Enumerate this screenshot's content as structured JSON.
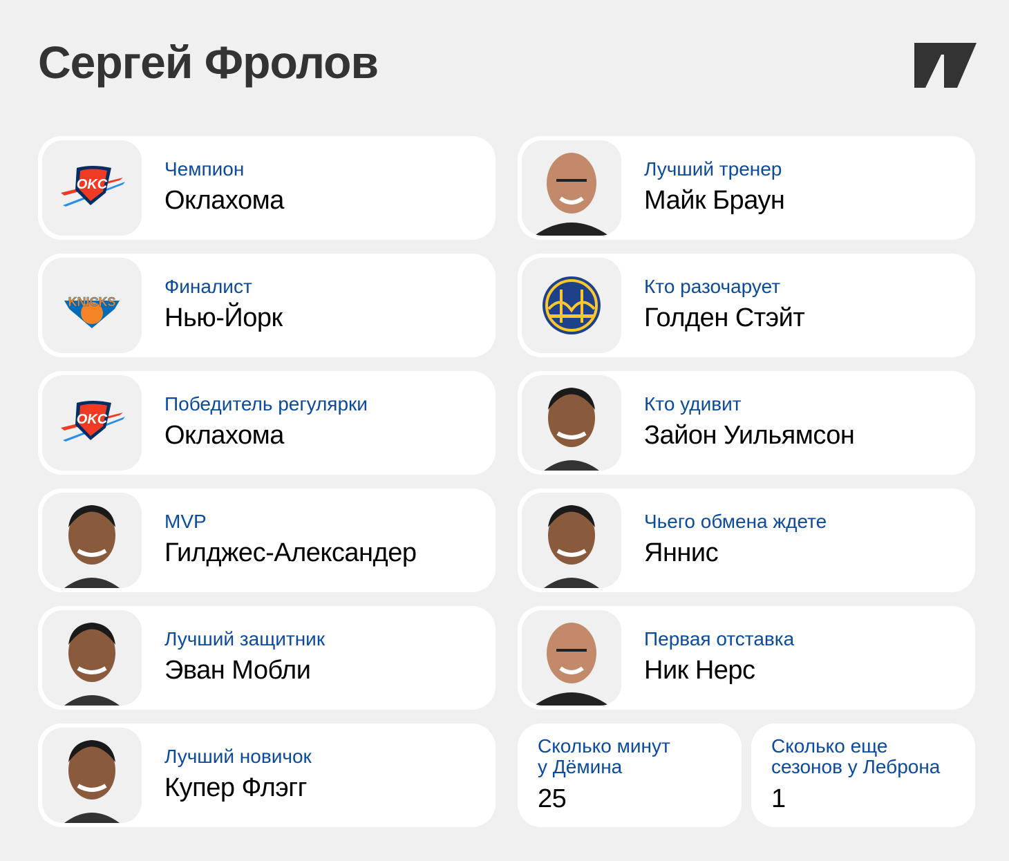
{
  "header": {
    "title": "Сергей Фролов",
    "logo": "brand-logo"
  },
  "colors": {
    "label": "#0b4a9c",
    "background": "#f0f0f0",
    "card": "#ffffff"
  },
  "cards": [
    {
      "label": "Чемпион",
      "value": "Оклахома",
      "image": "okc-logo"
    },
    {
      "label": "Лучший тренер",
      "value": "Майк Браун",
      "image": "coach-photo"
    },
    {
      "label": "Финалист",
      "value": "Нью-Йорк",
      "image": "knicks-logo"
    },
    {
      "label": "Кто разочарует",
      "value": "Голден Стэйт",
      "image": "warriors-logo"
    },
    {
      "label": "Победитель регулярки",
      "value": "Оклахома",
      "image": "okc-logo"
    },
    {
      "label": "Кто удивит",
      "value": "Зайон Уильямсон",
      "image": "player-photo"
    },
    {
      "label": "MVP",
      "value": "Гилджес-Александер",
      "image": "player-photo"
    },
    {
      "label": "Чьего обмена ждете",
      "value": "Яннис",
      "image": "player-photo"
    },
    {
      "label": "Лучший защитник",
      "value": "Эван Мобли",
      "image": "player-photo"
    },
    {
      "label": "Первая отставка",
      "value": "Ник Нерс",
      "image": "coach-photo"
    },
    {
      "label": "Лучший новичок",
      "value": "Купер Флэгг",
      "image": "player-photo"
    }
  ],
  "small_cards": [
    {
      "label_line1": "Сколько минут",
      "label_line2": "у Дёмина",
      "value": "25"
    },
    {
      "label_line1": "Сколько еще",
      "label_line2": "сезонов у Леброна",
      "value": "1"
    }
  ]
}
